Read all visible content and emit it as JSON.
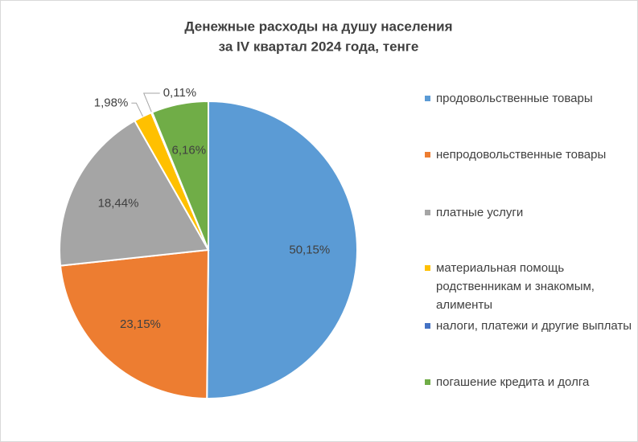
{
  "chart_data": {
    "type": "pie",
    "title": [
      "Денежные расходы на душу населения",
      "за IV квартал  2024 года, тенге"
    ],
    "categories": [
      "продовольственные товары",
      "непродовольственные товары",
      "платные услуги",
      "материальная помощь родственникам и знакомым, алименты",
      "налоги, платежи и другие выплаты",
      "погашение кредита и долга"
    ],
    "values": [
      50.15,
      23.15,
      18.44,
      1.98,
      0.11,
      6.16
    ],
    "value_labels": [
      "50,15%",
      "23,15%",
      "18,44%",
      "1,98%",
      "0,11%",
      "6,16%"
    ],
    "colors": [
      "#5b9bd5",
      "#ed7d31",
      "#a5a5a5",
      "#ffc000",
      "#4472c4",
      "#70ad47"
    ],
    "legend": "right"
  }
}
